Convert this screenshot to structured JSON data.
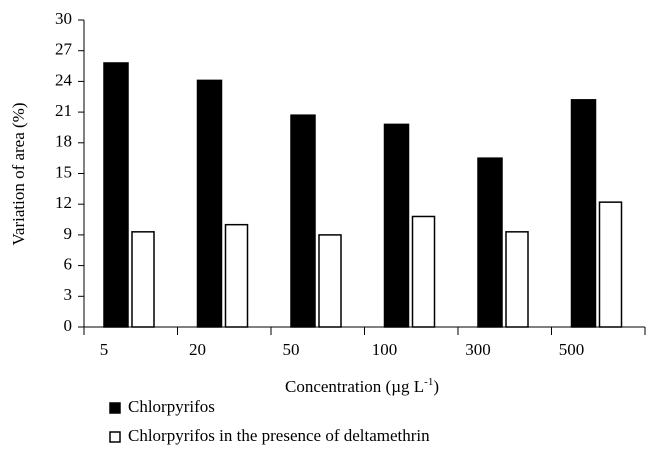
{
  "chart_data": {
    "type": "bar",
    "categories": [
      "5",
      "20",
      "50",
      "100",
      "300",
      "500"
    ],
    "series": [
      {
        "name": "Chlorpyrifos",
        "color": "#000000",
        "values": [
          25.8,
          24.1,
          20.7,
          19.8,
          16.5,
          22.2
        ]
      },
      {
        "name": "Chlorpyrifos in the presence of deltamethrin",
        "color": "#ffffff",
        "values": [
          9.3,
          10.0,
          9.0,
          10.8,
          9.3,
          12.2
        ]
      }
    ],
    "ylabel": "Variation of area (%)",
    "x_label": {
      "text": "Concentration (µg L",
      "superscript": "-1",
      "close": ")"
    },
    "ylim": [
      0,
      30
    ],
    "yticks": [
      0,
      3,
      6,
      9,
      12,
      15,
      18,
      21,
      24,
      27,
      30
    ],
    "legend": "bottom-left"
  }
}
